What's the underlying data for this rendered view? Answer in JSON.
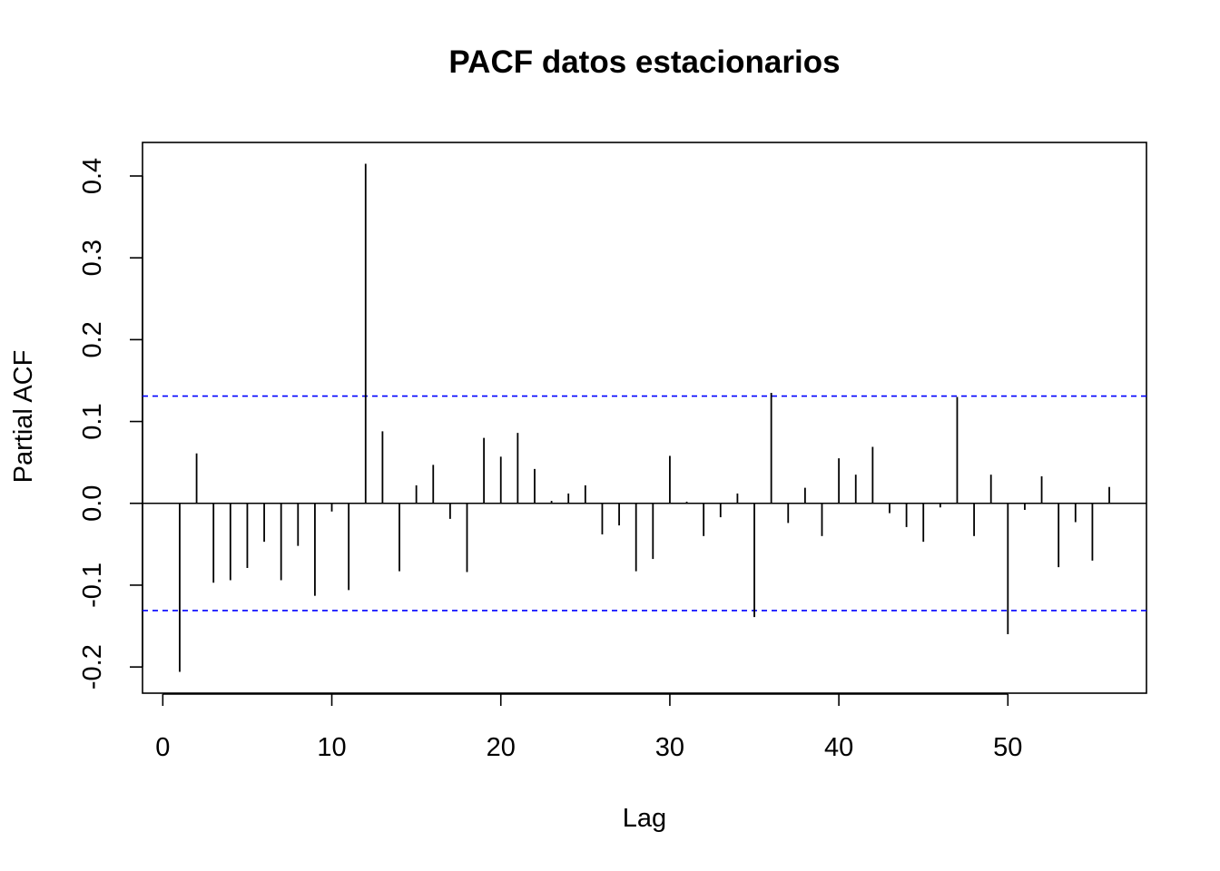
{
  "chart_data": {
    "type": "bar",
    "subtype": "pacf-stem",
    "title": "PACF datos estacionarios",
    "xlabel": "Lag",
    "ylabel": "Partial ACF",
    "xlim": [
      -1.2,
      58.2
    ],
    "ylim": [
      -0.232,
      0.441
    ],
    "x_ticks": [
      0,
      10,
      20,
      30,
      40,
      50
    ],
    "x_tick_labels": [
      "0",
      "10",
      "20",
      "30",
      "40",
      "50"
    ],
    "y_ticks": [
      -0.2,
      -0.1,
      0.0,
      0.1,
      0.2,
      0.3,
      0.4
    ],
    "y_tick_labels": [
      "-0.2",
      "-0.1",
      "0.0",
      "0.1",
      "0.2",
      "0.3",
      "0.4"
    ],
    "confidence_bound": 0.131,
    "confidence_color": "#0000ff",
    "bar_color": "#000000",
    "grid": false,
    "lags": [
      1,
      2,
      3,
      4,
      5,
      6,
      7,
      8,
      9,
      10,
      11,
      12,
      13,
      14,
      15,
      16,
      17,
      18,
      19,
      20,
      21,
      22,
      23,
      24,
      25,
      26,
      27,
      28,
      29,
      30,
      31,
      32,
      33,
      34,
      35,
      36,
      37,
      38,
      39,
      40,
      41,
      42,
      43,
      44,
      45,
      46,
      47,
      48,
      49,
      50,
      51,
      52,
      53,
      54,
      55,
      56
    ],
    "values": [
      -0.206,
      0.061,
      -0.097,
      -0.094,
      -0.079,
      -0.047,
      -0.094,
      -0.052,
      -0.113,
      -0.01,
      -0.106,
      0.415,
      0.088,
      -0.083,
      0.022,
      0.047,
      -0.019,
      -0.084,
      0.08,
      0.057,
      0.086,
      0.042,
      0.003,
      0.012,
      0.022,
      -0.038,
      -0.027,
      -0.083,
      -0.068,
      0.058,
      0.002,
      -0.04,
      -0.017,
      0.012,
      -0.139,
      0.135,
      -0.024,
      0.019,
      -0.04,
      0.055,
      0.035,
      0.069,
      -0.012,
      -0.029,
      -0.047,
      -0.005,
      0.13,
      -0.04,
      0.035,
      -0.16,
      -0.008,
      0.033,
      -0.078,
      -0.023,
      -0.07,
      0.02
    ]
  }
}
